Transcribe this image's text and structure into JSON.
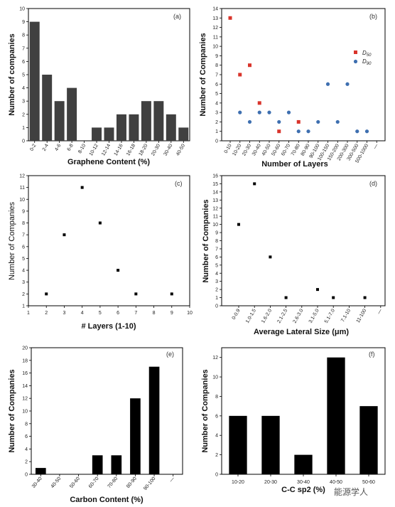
{
  "chart_data": [
    {
      "type": "bar",
      "panel": "(a)",
      "categories": [
        "0-2",
        "2-4",
        "4-6",
        "6-8",
        "8-10",
        "10-12",
        "12-14",
        "14-16",
        "16-18",
        "18-20",
        "20-30",
        "30-40",
        "40-50"
      ],
      "values": [
        9,
        5,
        3,
        4,
        0,
        1,
        1,
        2,
        2,
        3,
        3,
        2,
        1
      ],
      "xlabel": "Graphene Content (%)",
      "ylabel": "Number of companies",
      "ylim": [
        0,
        10
      ],
      "yticks": [
        0,
        1,
        2,
        3,
        4,
        5,
        6,
        7,
        8,
        9,
        10
      ],
      "bar_color": "#404040"
    },
    {
      "type": "scatter",
      "panel": "(b)",
      "categories": [
        "0-10",
        "10-20",
        "20-30",
        "30-40",
        "40-50",
        "50-60",
        "60-70",
        "70-80",
        "80-90",
        "90-100",
        "100-150",
        "150-200",
        "200-300",
        "300-500",
        "500-1000",
        "—"
      ],
      "series": [
        {
          "name": "D50",
          "label_main": "D",
          "label_sub": "50",
          "color": "#d9342b",
          "marker": "square",
          "values": [
            13,
            7,
            8,
            4,
            null,
            1,
            null,
            2,
            null,
            null,
            null,
            null,
            null,
            null,
            null,
            null
          ]
        },
        {
          "name": "D90",
          "label_main": "D",
          "label_sub": "90",
          "color": "#3e6fb0",
          "marker": "circle",
          "values": [
            null,
            3,
            2,
            3,
            3,
            2,
            3,
            1,
            1,
            2,
            6,
            2,
            6,
            1,
            1,
            null
          ]
        }
      ],
      "xlabel": "Number of Layers",
      "ylabel": "Number of Companies",
      "ylim": [
        0,
        14
      ],
      "yticks": [
        0,
        1,
        2,
        3,
        4,
        5,
        6,
        7,
        8,
        9,
        10,
        11,
        12,
        13,
        14
      ],
      "legend": "right"
    },
    {
      "type": "scatter",
      "panel": "(c)",
      "x": [
        2,
        3,
        4,
        5,
        6,
        7,
        9
      ],
      "y": [
        2,
        7,
        11,
        8,
        4,
        2,
        2
      ],
      "xlabel": "# Layers (1-10)",
      "ylabel": "Number of Companies",
      "xlim": [
        1,
        10
      ],
      "ylim": [
        1,
        12
      ],
      "xticks": [
        1,
        2,
        3,
        4,
        5,
        6,
        7,
        8,
        9,
        10
      ],
      "yticks": [
        1,
        2,
        3,
        4,
        5,
        6,
        7,
        8,
        9,
        10,
        11,
        12
      ]
    },
    {
      "type": "scatter",
      "panel": "(d)",
      "categories": [
        "0-0.9",
        "1.0-1.5",
        "1.6-2.0",
        "2.1-2.5",
        "2.6-3.0",
        "3.1-5.0",
        "5.1-7.0",
        "7.1-10",
        "11-100",
        "—"
      ],
      "values": [
        10,
        15,
        6,
        1,
        null,
        2,
        1,
        null,
        1,
        null
      ],
      "xlabel": "Average Lateral Size (μm)",
      "ylabel": "Number of Companies",
      "ylim": [
        0,
        16
      ],
      "yticks": [
        0,
        1,
        2,
        3,
        4,
        5,
        6,
        7,
        8,
        9,
        10,
        11,
        12,
        13,
        14,
        15,
        16
      ]
    },
    {
      "type": "bar",
      "panel": "(e)",
      "categories": [
        "30-40",
        "40-50",
        "50-60",
        "60-70",
        "70-80",
        "80-90",
        "90-100",
        "—"
      ],
      "values": [
        1,
        0,
        0,
        3,
        3,
        12,
        17,
        null
      ],
      "xlabel": "Carbon Content (%)",
      "ylabel": "Number of Companies",
      "ylim": [
        0,
        20
      ],
      "yticks": [
        0,
        2,
        4,
        6,
        8,
        10,
        12,
        14,
        16,
        18,
        20
      ],
      "bar_color": "#000000"
    },
    {
      "type": "bar",
      "panel": "(f)",
      "categories": [
        "10-20",
        "20-30",
        "30-40",
        "40-50",
        "50-60"
      ],
      "values": [
        6,
        6,
        2,
        12,
        7
      ],
      "xlabel": "C-C sp2 (%)",
      "ylabel": "Number of Companies",
      "ylim": [
        0,
        13
      ],
      "yticks": [
        0,
        2,
        4,
        6,
        8,
        10,
        12
      ],
      "bar_color": "#000000"
    }
  ],
  "watermark": "能源学人"
}
